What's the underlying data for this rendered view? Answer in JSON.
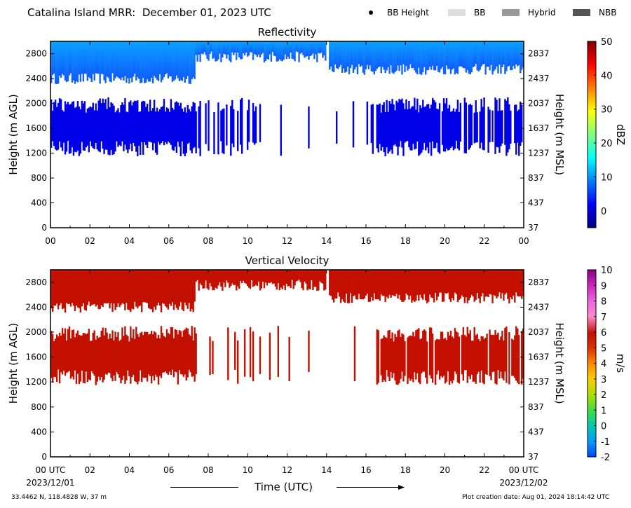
{
  "header": {
    "title": "Catalina Island MRR:  December 01, 2023 UTC"
  },
  "legend": [
    {
      "label": "BB Height",
      "symbol": "dot",
      "color": "#000000"
    },
    {
      "label": "BB",
      "symbol": "swatch",
      "color": "#dcdcdc"
    },
    {
      "label": "Hybrid",
      "symbol": "swatch",
      "color": "#999999"
    },
    {
      "label": "NBB",
      "symbol": "swatch",
      "color": "#555555"
    }
  ],
  "footer": {
    "location": "33.4462 N, 118.4828 W, 37 m",
    "creation": "Plot creation date: Aug 01, 2024 18:14:42 UTC",
    "xaxis_title": "Time (UTC)"
  },
  "chart_data": [
    {
      "type": "heatmap",
      "title": "Reflectivity",
      "xlabel": "",
      "ylabel": "Height (m AGL)",
      "ylabel_right": "Height (m MSL)",
      "xlim": [
        0,
        24
      ],
      "ylim": [
        0,
        3000
      ],
      "x_ticks": [
        "00",
        "02",
        "04",
        "06",
        "08",
        "10",
        "12",
        "14",
        "16",
        "18",
        "20",
        "22",
        "00"
      ],
      "y_ticks": [
        "0",
        "400",
        "800",
        "1200",
        "1600",
        "2000",
        "2400",
        "2800"
      ],
      "y_ticks_right": [
        "37",
        "437",
        "837",
        "1237",
        "1637",
        "2037",
        "2437",
        "2837"
      ],
      "colorbar": {
        "label": "dBZ",
        "range": [
          -5,
          50
        ],
        "ticks": [
          "0",
          "10",
          "20",
          "30",
          "40",
          "50"
        ],
        "tick_values": [
          0,
          10,
          20,
          30,
          40,
          50
        ]
      },
      "layers": [
        {
          "name": "upper",
          "color": "#0f5cff",
          "top_color": "#0aa2ff",
          "bottom": 2450,
          "top": 3000,
          "segments": [
            [
              0,
              7.3,
              2400
            ],
            [
              7.3,
              14,
              2750
            ],
            [
              14,
              24,
              2550
            ]
          ]
        },
        {
          "name": "lower",
          "color": "#0000e8",
          "bottom": 1150,
          "top": 2100,
          "segments": [
            [
              0,
              7.4,
              1
            ],
            [
              7.4,
              10.3,
              0.35
            ],
            [
              10.3,
              13.2,
              0.12
            ],
            [
              13.9,
              16.5,
              0.08
            ],
            [
              16.5,
              24,
              0.9
            ]
          ]
        }
      ]
    },
    {
      "type": "heatmap",
      "title": "Vertical Velocity",
      "xlabel": "Time (UTC)",
      "ylabel": "Height (m AGL)",
      "ylabel_right": "Height (m MSL)",
      "xlim": [
        0,
        24
      ],
      "ylim": [
        0,
        3000
      ],
      "x_ticks": [
        "00 UTC",
        "02",
        "04",
        "06",
        "08",
        "10",
        "12",
        "14",
        "16",
        "18",
        "20",
        "22",
        "00 UTC"
      ],
      "x_dates": {
        "start": "2023/12/01",
        "end": "2023/12/02"
      },
      "y_ticks": [
        "0",
        "400",
        "800",
        "1200",
        "1600",
        "2000",
        "2400",
        "2800"
      ],
      "y_ticks_right": [
        "37",
        "437",
        "837",
        "1237",
        "1637",
        "2037",
        "2437",
        "2837"
      ],
      "colorbar": {
        "label": "m/s",
        "range": [
          -2,
          10
        ],
        "ticks": [
          "-2",
          "-1",
          "0",
          "1",
          "2",
          "3",
          "4",
          "5",
          "6",
          "7",
          "8",
          "9",
          "10"
        ],
        "tick_values": [
          -2,
          -1,
          0,
          1,
          2,
          3,
          4,
          5,
          6,
          7,
          8,
          9,
          10
        ]
      },
      "layers": [
        {
          "name": "upper",
          "color": "#c31000",
          "top_color": "#c31000",
          "bottom": 2450,
          "top": 3000,
          "segments": [
            [
              0,
              7.3,
              2400
            ],
            [
              7.3,
              14,
              2750
            ],
            [
              14,
              24,
              2550
            ]
          ]
        },
        {
          "name": "lower",
          "color": "#c31000",
          "bottom": 1150,
          "top": 2100,
          "segments": [
            [
              0,
              7.4,
              1
            ],
            [
              7.4,
              10.3,
              0.35
            ],
            [
              10.3,
              13.2,
              0.12
            ],
            [
              13.9,
              16.5,
              0.08
            ],
            [
              16.5,
              24,
              0.9
            ]
          ]
        }
      ]
    }
  ]
}
